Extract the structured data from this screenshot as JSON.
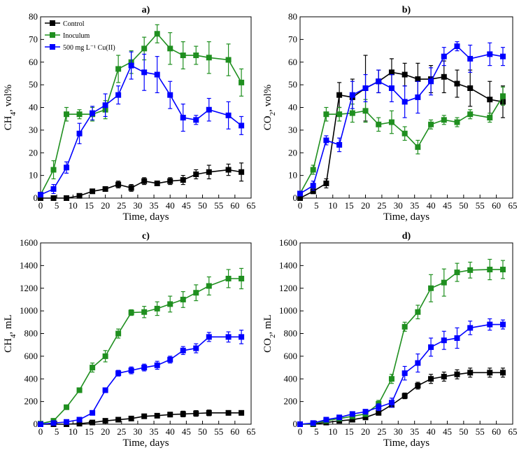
{
  "colors": {
    "control": "#000000",
    "inoculum": "#1f8f1f",
    "cu": "#0000ff"
  },
  "legend": [
    {
      "key": "control",
      "label": "Control"
    },
    {
      "key": "inoculum",
      "label": "Inoculum"
    },
    {
      "key": "cu",
      "label": "500 mg L⁻¹ Cu(II)"
    }
  ],
  "chart_data": [
    {
      "type": "line",
      "panel": "a)",
      "xlabel": "Time, days",
      "ylabel": "CH4, vol%",
      "xlim": [
        0,
        65
      ],
      "ylim": [
        0,
        80
      ],
      "xticks": [
        0,
        5,
        10,
        15,
        20,
        25,
        30,
        35,
        40,
        45,
        50,
        55,
        60,
        65
      ],
      "yticks": [
        0,
        10,
        20,
        30,
        40,
        50,
        60,
        70,
        80
      ],
      "series": [
        {
          "key": "control",
          "name": "Control",
          "x": [
            0,
            4,
            8,
            12,
            16,
            20,
            24,
            28,
            32,
            36,
            40,
            44,
            48,
            52,
            58,
            62
          ],
          "y": [
            0,
            0,
            0,
            1,
            3,
            4,
            6,
            4.5,
            7.5,
            6.5,
            7.5,
            8,
            10.5,
            11.5,
            12.5,
            11.5
          ],
          "err": [
            0,
            1,
            0.5,
            0.5,
            0.5,
            1,
            1.5,
            1.5,
            1.5,
            1,
            1.5,
            2,
            2,
            3,
            2.5,
            4
          ]
        },
        {
          "key": "inoculum",
          "name": "Inoculum",
          "x": [
            0,
            4,
            8,
            12,
            16,
            20,
            24,
            28,
            32,
            36,
            40,
            44,
            48,
            52,
            58,
            62
          ],
          "y": [
            1.5,
            12.5,
            37,
            37,
            37,
            39,
            57,
            60,
            66,
            72.5,
            66,
            63,
            63,
            62,
            61,
            51
          ],
          "err": [
            1,
            4,
            3,
            2,
            3,
            4,
            6,
            5,
            5,
            4,
            7,
            6,
            4,
            7,
            7,
            6
          ]
        },
        {
          "key": "cu",
          "name": "500 mg L⁻¹ Cu(II)",
          "x": [
            0,
            4,
            8,
            12,
            16,
            20,
            24,
            28,
            32,
            36,
            40,
            44,
            48,
            52,
            58,
            62
          ],
          "y": [
            1.5,
            4,
            13.5,
            28.5,
            37.5,
            41,
            45.5,
            58.5,
            55.5,
            54.5,
            45.5,
            35.5,
            34.5,
            39,
            36.5,
            32
          ],
          "err": [
            1,
            2,
            2.5,
            4.5,
            3,
            5,
            4,
            6,
            8,
            8,
            6,
            6,
            2,
            5,
            6,
            4
          ]
        }
      ]
    },
    {
      "type": "line",
      "panel": "b)",
      "xlabel": "Time, days",
      "ylabel": "CO2, vol%",
      "xlim": [
        0,
        65
      ],
      "ylim": [
        0,
        80
      ],
      "xticks": [
        0,
        5,
        10,
        15,
        20,
        25,
        30,
        35,
        40,
        45,
        50,
        55,
        60,
        65
      ],
      "yticks": [
        0,
        10,
        20,
        30,
        40,
        50,
        60,
        70,
        80
      ],
      "series": [
        {
          "key": "control",
          "name": "Control",
          "x": [
            0,
            4,
            8,
            12,
            16,
            20,
            24,
            28,
            32,
            36,
            40,
            44,
            48,
            52,
            58,
            62
          ],
          "y": [
            0,
            3,
            6.5,
            45.5,
            44.5,
            48.5,
            51.5,
            55.5,
            54.5,
            52.5,
            52.5,
            53.5,
            50.5,
            48.5,
            43.5,
            42.5
          ],
          "err": [
            0.5,
            1,
            2,
            5.5,
            8,
            14.5,
            5,
            6,
            5,
            7,
            6,
            7,
            6,
            8,
            8,
            7
          ]
        },
        {
          "key": "inoculum",
          "name": "Inoculum",
          "x": [
            0,
            4,
            8,
            12,
            16,
            20,
            24,
            28,
            32,
            36,
            40,
            44,
            48,
            52,
            58,
            62
          ],
          "y": [
            2,
            12.5,
            37,
            37,
            37.5,
            38.5,
            32.5,
            33.5,
            28.5,
            22.5,
            32.5,
            34.5,
            33.5,
            37,
            35.5,
            45
          ],
          "err": [
            1,
            2,
            3,
            3,
            4,
            5,
            3,
            5,
            3,
            3,
            2,
            2,
            2,
            2,
            2,
            4
          ]
        },
        {
          "key": "cu",
          "name": "500 mg L⁻¹ Cu(II)",
          "x": [
            0,
            4,
            8,
            12,
            16,
            20,
            24,
            28,
            32,
            36,
            40,
            44,
            48,
            52,
            58,
            62
          ],
          "y": [
            2,
            5.5,
            25.5,
            23.5,
            45.5,
            48.5,
            51.5,
            48.5,
            42.5,
            44.5,
            51.5,
            62.5,
            67,
            61.5,
            63.5,
            62.5
          ],
          "err": [
            1,
            2,
            2,
            3,
            6,
            6,
            5,
            6,
            7,
            7,
            6,
            4,
            2,
            6,
            5,
            4
          ]
        }
      ]
    },
    {
      "type": "line",
      "panel": "c)",
      "xlabel": "Time, days",
      "ylabel": "CH4, mL",
      "xlim": [
        0,
        65
      ],
      "ylim": [
        0,
        1600
      ],
      "xticks": [
        0,
        5,
        10,
        15,
        20,
        25,
        30,
        35,
        40,
        45,
        50,
        55,
        60,
        65
      ],
      "yticks": [
        0,
        200,
        400,
        600,
        800,
        1000,
        1200,
        1400,
        1600
      ],
      "series": [
        {
          "key": "control",
          "name": "Control",
          "x": [
            0,
            4,
            8,
            12,
            16,
            20,
            24,
            28,
            32,
            36,
            40,
            44,
            48,
            52,
            58,
            62
          ],
          "y": [
            0,
            0,
            0,
            5,
            15,
            30,
            40,
            50,
            70,
            75,
            85,
            90,
            95,
            100,
            100,
            100
          ],
          "err": [
            5,
            5,
            5,
            5,
            10,
            10,
            10,
            10,
            15,
            15,
            20,
            25,
            25,
            25,
            20,
            20
          ]
        },
        {
          "key": "inoculum",
          "name": "Inoculum",
          "x": [
            0,
            4,
            8,
            12,
            16,
            20,
            24,
            28,
            32,
            36,
            40,
            44,
            48,
            52,
            58,
            62
          ],
          "y": [
            5,
            30,
            150,
            300,
            500,
            600,
            800,
            985,
            990,
            1020,
            1060,
            1100,
            1160,
            1220,
            1285,
            1285
          ],
          "err": [
            5,
            10,
            15,
            20,
            40,
            50,
            40,
            25,
            50,
            60,
            70,
            70,
            70,
            80,
            80,
            90
          ]
        },
        {
          "key": "cu",
          "name": "500 mg L⁻¹ Cu(II)",
          "x": [
            0,
            4,
            8,
            12,
            16,
            20,
            24,
            28,
            32,
            36,
            40,
            44,
            48,
            52,
            58,
            62
          ],
          "y": [
            0,
            10,
            20,
            40,
            100,
            300,
            450,
            475,
            500,
            520,
            570,
            650,
            670,
            770,
            770,
            770
          ],
          "err": [
            5,
            5,
            5,
            10,
            10,
            15,
            25,
            30,
            30,
            35,
            30,
            35,
            40,
            40,
            45,
            60
          ]
        }
      ]
    },
    {
      "type": "line",
      "panel": "d)",
      "xlabel": "Time, days",
      "ylabel": "CO2, mL",
      "xlim": [
        0,
        65
      ],
      "ylim": [
        0,
        1600
      ],
      "xticks": [
        0,
        5,
        10,
        15,
        20,
        25,
        30,
        35,
        40,
        45,
        50,
        55,
        60,
        65
      ],
      "yticks": [
        0,
        200,
        400,
        600,
        800,
        1000,
        1200,
        1400,
        1600
      ],
      "series": [
        {
          "key": "control",
          "name": "Control",
          "x": [
            0,
            4,
            8,
            12,
            16,
            20,
            24,
            28,
            32,
            36,
            40,
            44,
            48,
            52,
            58,
            62
          ],
          "y": [
            0,
            0,
            15,
            30,
            40,
            60,
            100,
            170,
            250,
            340,
            400,
            420,
            440,
            455,
            455,
            455
          ],
          "err": [
            5,
            5,
            5,
            10,
            10,
            10,
            15,
            20,
            25,
            30,
            40,
            40,
            40,
            40,
            40,
            40
          ]
        },
        {
          "key": "inoculum",
          "name": "Inoculum",
          "x": [
            0,
            4,
            8,
            12,
            16,
            20,
            24,
            28,
            32,
            36,
            40,
            44,
            48,
            52,
            58,
            62
          ],
          "y": [
            0,
            5,
            30,
            50,
            70,
            90,
            180,
            400,
            860,
            990,
            1200,
            1250,
            1340,
            1360,
            1365,
            1365
          ],
          "err": [
            5,
            5,
            10,
            15,
            15,
            20,
            30,
            40,
            40,
            60,
            120,
            120,
            80,
            70,
            90,
            80
          ]
        },
        {
          "key": "cu",
          "name": "500 mg L⁻¹ Cu(II)",
          "x": [
            0,
            4,
            8,
            12,
            16,
            20,
            24,
            28,
            32,
            36,
            40,
            44,
            48,
            52,
            58,
            62
          ],
          "y": [
            0,
            10,
            40,
            60,
            90,
            110,
            150,
            190,
            450,
            540,
            680,
            740,
            760,
            850,
            880,
            880
          ],
          "err": [
            5,
            5,
            10,
            15,
            15,
            20,
            30,
            40,
            60,
            80,
            80,
            80,
            90,
            60,
            50,
            40
          ]
        }
      ]
    }
  ]
}
